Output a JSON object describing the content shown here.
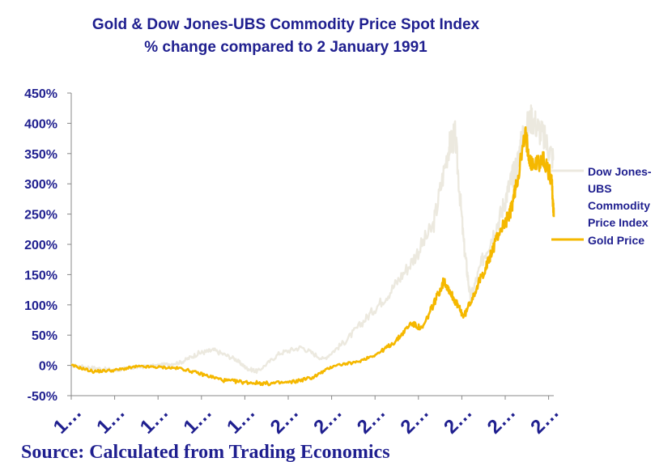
{
  "chart_data": {
    "type": "line",
    "title_line1": "Gold & Dow Jones-UBS Commodity Price Spot Index",
    "title_line2": "% change compared to 2 January 1991",
    "source": "Source: Calculated from Trading Economics",
    "ylim": [
      -50,
      450
    ],
    "yticks": [
      "450%",
      "400%",
      "350%",
      "300%",
      "250%",
      "200%",
      "150%",
      "100%",
      "50%",
      "0%",
      "-50%"
    ],
    "xticks": [
      "1…",
      "1…",
      "1…",
      "1…",
      "1…",
      "2…",
      "2…",
      "2…",
      "2…",
      "2…",
      "2…",
      "2…"
    ],
    "legend_position": "right",
    "series": [
      {
        "name": "Dow Jones-UBS Commodity Price Index",
        "legend_lines": [
          "Dow Jones-",
          "UBS",
          "Commodity",
          "Price Index"
        ],
        "color": "#ece9df",
        "x": [
          1991.0,
          1992.0,
          1993.0,
          1994.0,
          1995.0,
          1996.0,
          1996.8,
          1997.5,
          1998.5,
          1999.0,
          1999.5,
          2000.5,
          2001.5,
          2002.5,
          2003.5,
          2004.5,
          2005.5,
          2006.5,
          2007.5,
          2008.2,
          2008.5,
          2008.9,
          2009.2,
          2009.8,
          2010.5,
          2011.0,
          2011.3,
          2011.6,
          2012.0,
          2012.5,
          2013.0
        ],
        "values": [
          0,
          -4,
          -8,
          -3,
          0,
          5,
          20,
          25,
          10,
          -5,
          -10,
          20,
          30,
          10,
          40,
          80,
          120,
          170,
          230,
          360,
          380,
          200,
          110,
          180,
          240,
          300,
          330,
          380,
          410,
          380,
          340
        ]
      },
      {
        "name": "Gold Price",
        "legend_lines": [
          "Gold Price"
        ],
        "color": "#f5b800",
        "x": [
          1991.0,
          1992.0,
          1993.0,
          1994.0,
          1995.0,
          1996.0,
          1997.0,
          1998.0,
          1999.0,
          2000.0,
          2001.0,
          2002.0,
          2003.0,
          2004.0,
          2005.0,
          2005.8,
          2006.5,
          2007.0,
          2007.5,
          2008.0,
          2008.3,
          2008.6,
          2008.9,
          2009.5,
          2010.0,
          2010.5,
          2011.0,
          2011.3,
          2011.7,
          2012.0,
          2012.5,
          2012.9,
          2013.0
        ],
        "values": [
          0,
          -10,
          -8,
          -2,
          -3,
          -5,
          -15,
          -25,
          -28,
          -30,
          -28,
          -20,
          0,
          5,
          20,
          40,
          70,
          60,
          100,
          140,
          120,
          100,
          80,
          130,
          170,
          220,
          250,
          300,
          380,
          330,
          340,
          310,
          245
        ]
      }
    ]
  }
}
